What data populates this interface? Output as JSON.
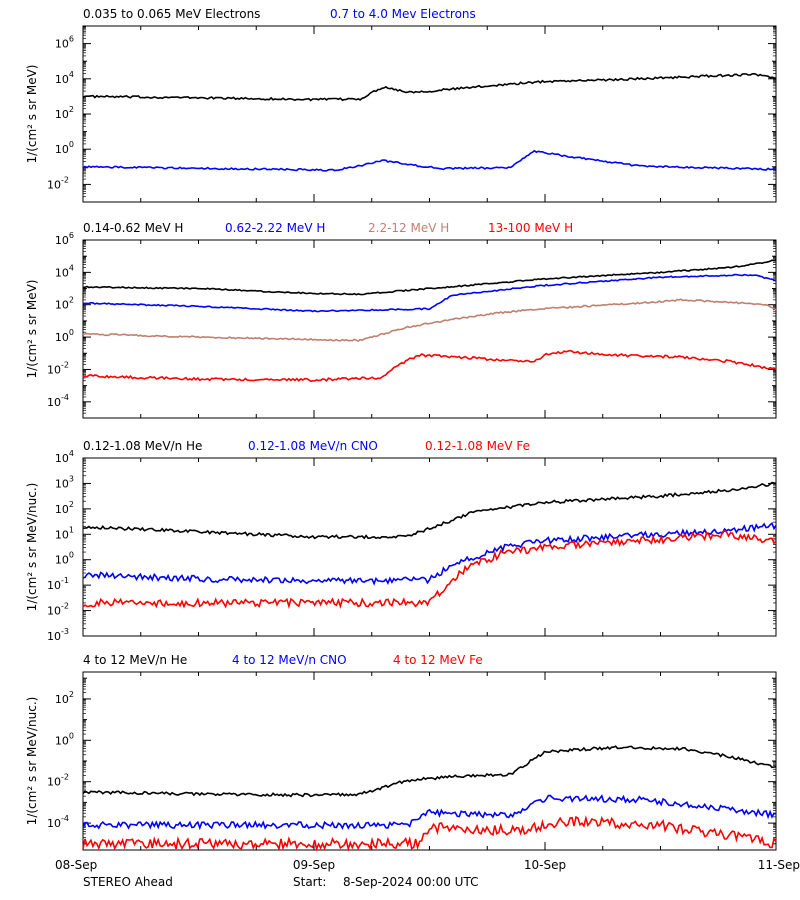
{
  "footer": {
    "spacecraft": "STEREO Ahead",
    "start_label": "Start:",
    "start_value": "8-Sep-2024 00:00 UTC"
  },
  "x_axis": {
    "ticks": [
      "08-Sep",
      "09-Sep",
      "10-Sep",
      "11-Sep"
    ],
    "range_days": [
      0,
      3
    ]
  },
  "chart_data": [
    {
      "type": "line",
      "panel": "electrons",
      "ylabel": "1/(cm² s sr MeV)",
      "yscale": "log",
      "ylim_exp": [
        -3,
        7
      ],
      "y_tick_exponents": [
        -2,
        0,
        2,
        4,
        6
      ],
      "x_ticks": [
        "08-Sep",
        "09-Sep",
        "10-Sep",
        "11-Sep"
      ],
      "series": [
        {
          "name": "0.035 to 0.065 MeV Electrons",
          "color": "#000000",
          "x": [
            0,
            0.5,
            1.0,
            1.2,
            1.3,
            1.4,
            1.5,
            1.8,
            2.0,
            2.3,
            2.6,
            2.9,
            2.95,
            3.0
          ],
          "log10_y": [
            3.0,
            2.92,
            2.82,
            2.85,
            3.55,
            3.25,
            3.3,
            3.65,
            3.85,
            3.95,
            4.1,
            4.25,
            4.15,
            4.05
          ],
          "noise": 0.06
        },
        {
          "name": "0.7 to 4.0 Mev Electrons",
          "color": "#0000ff",
          "x": [
            0,
            0.9,
            1.1,
            1.3,
            1.4,
            1.55,
            1.85,
            1.95,
            2.1,
            2.4,
            2.7,
            3.0
          ],
          "log10_y": [
            -1.0,
            -1.15,
            -1.2,
            -0.65,
            -0.85,
            -1.1,
            -1.05,
            -0.1,
            -0.4,
            -0.95,
            -1.05,
            -1.15
          ],
          "noise": 0.05
        }
      ]
    },
    {
      "type": "line",
      "panel": "protons",
      "ylabel": "1/(cm² s sr MeV)",
      "yscale": "log",
      "ylim_exp": [
        -5,
        6
      ],
      "y_tick_exponents": [
        -4,
        -2,
        0,
        2,
        4,
        6
      ],
      "x_ticks": [
        "08-Sep",
        "09-Sep",
        "10-Sep",
        "11-Sep"
      ],
      "series": [
        {
          "name": "0.14-0.62 MeV H",
          "color": "#000000",
          "x": [
            0,
            0.5,
            1.0,
            1.2,
            1.5,
            1.8,
            2.0,
            2.5,
            2.8,
            2.95,
            3.0
          ],
          "log10_y": [
            3.1,
            3.0,
            2.7,
            2.65,
            3.0,
            3.35,
            3.6,
            4.0,
            4.3,
            4.6,
            4.8
          ],
          "noise": 0.04
        },
        {
          "name": "0.62-2.22 MeV H",
          "color": "#0000ff",
          "x": [
            0,
            0.5,
            1.0,
            1.5,
            1.6,
            1.8,
            2.0,
            2.5,
            2.9,
            3.0
          ],
          "log10_y": [
            2.1,
            1.9,
            1.6,
            1.75,
            2.6,
            2.9,
            3.2,
            3.7,
            3.85,
            3.5
          ],
          "noise": 0.04
        },
        {
          "name": "2.2-12 MeV H",
          "color": "#c08070",
          "x": [
            0,
            0.5,
            1.0,
            1.2,
            1.4,
            1.6,
            1.8,
            2.0,
            2.4,
            2.6,
            2.8,
            2.95,
            3.0
          ],
          "log10_y": [
            0.2,
            0.0,
            -0.15,
            -0.2,
            0.6,
            1.1,
            1.5,
            1.75,
            2.1,
            2.3,
            2.15,
            2.0,
            1.7
          ],
          "noise": 0.05
        },
        {
          "name": "13-100 MeV H",
          "color": "#ff0000",
          "x": [
            0,
            0.5,
            1.0,
            1.3,
            1.35,
            1.45,
            1.7,
            1.95,
            2.0,
            2.1,
            2.3,
            2.6,
            2.8,
            3.0
          ],
          "log10_y": [
            -2.4,
            -2.6,
            -2.65,
            -2.5,
            -1.9,
            -1.1,
            -1.3,
            -1.55,
            -1.1,
            -0.9,
            -1.1,
            -1.25,
            -1.5,
            -2.0
          ],
          "noise": 0.08
        }
      ]
    },
    {
      "type": "line",
      "panel": "low-energy ions",
      "ylabel": "1/(cm² s sr MeV/nuc.)",
      "yscale": "log",
      "ylim_exp": [
        -3,
        4
      ],
      "y_tick_exponents": [
        -3,
        -2,
        -1,
        0,
        1,
        2,
        3,
        4
      ],
      "x_ticks": [
        "08-Sep",
        "09-Sep",
        "10-Sep",
        "11-Sep"
      ],
      "series": [
        {
          "name": "0.12-1.08 MeV/n He",
          "color": "#000000",
          "x": [
            0,
            0.5,
            1.0,
            1.4,
            1.55,
            1.7,
            2.0,
            2.5,
            2.8,
            3.0
          ],
          "log10_y": [
            1.3,
            1.1,
            0.9,
            0.9,
            1.4,
            1.9,
            2.25,
            2.5,
            2.75,
            3.0
          ],
          "noise": 0.06
        },
        {
          "name": "0.12-1.08 MeV/n CNO",
          "color": "#0000ff",
          "x": [
            0,
            0.5,
            1.0,
            1.5,
            1.6,
            1.8,
            2.0,
            2.5,
            2.8,
            3.0
          ],
          "log10_y": [
            -0.6,
            -0.75,
            -0.85,
            -0.8,
            -0.2,
            0.45,
            0.75,
            1.0,
            1.15,
            1.35
          ],
          "noise": 0.12
        },
        {
          "name": "0.12-1.08 MeV Fe",
          "color": "#ff0000",
          "x": [
            0,
            1.5,
            1.55,
            1.65,
            1.8,
            2.0,
            2.5,
            2.8,
            3.0
          ],
          "log10_y": [
            -1.7,
            -1.7,
            -1.2,
            -0.4,
            0.2,
            0.5,
            0.8,
            1.0,
            0.7
          ],
          "noise": 0.15
        }
      ]
    },
    {
      "type": "line",
      "panel": "high-energy ions",
      "ylabel": "1/(cm² s sr MeV/nuc.)",
      "yscale": "log",
      "ylim_exp": [
        -5.3,
        3.3
      ],
      "y_tick_exponents": [
        -4,
        -2,
        0,
        2
      ],
      "x_ticks": [
        "08-Sep",
        "09-Sep",
        "10-Sep",
        "11-Sep"
      ],
      "series": [
        {
          "name": "4 to 12 MeV/n He",
          "color": "#000000",
          "x": [
            0,
            0.5,
            1.0,
            1.2,
            1.4,
            1.6,
            1.85,
            2.0,
            2.3,
            2.6,
            2.8,
            3.0
          ],
          "log10_y": [
            -2.5,
            -2.6,
            -2.65,
            -2.6,
            -1.95,
            -1.75,
            -1.65,
            -0.55,
            -0.35,
            -0.4,
            -0.8,
            -1.3
          ],
          "noise": 0.07
        },
        {
          "name": "4 to 12 MeV/n CNO",
          "color": "#0000ff",
          "x": [
            0,
            1.4,
            1.5,
            1.85,
            2.0,
            2.4,
            2.7,
            2.9,
            3.0
          ],
          "log10_y": [
            -4.1,
            -4.1,
            -3.5,
            -3.6,
            -2.8,
            -2.85,
            -3.2,
            -3.5,
            -3.6
          ],
          "noise": 0.15
        },
        {
          "name": "4 to 12 MeV Fe",
          "color": "#ff0000",
          "x": [
            0,
            1.45,
            1.5,
            1.9,
            2.1,
            2.5,
            2.8,
            3.0
          ],
          "log10_y": [
            -5.0,
            -5.0,
            -4.2,
            -4.4,
            -3.9,
            -4.1,
            -4.6,
            -5.0
          ],
          "noise": 0.25
        }
      ]
    }
  ]
}
